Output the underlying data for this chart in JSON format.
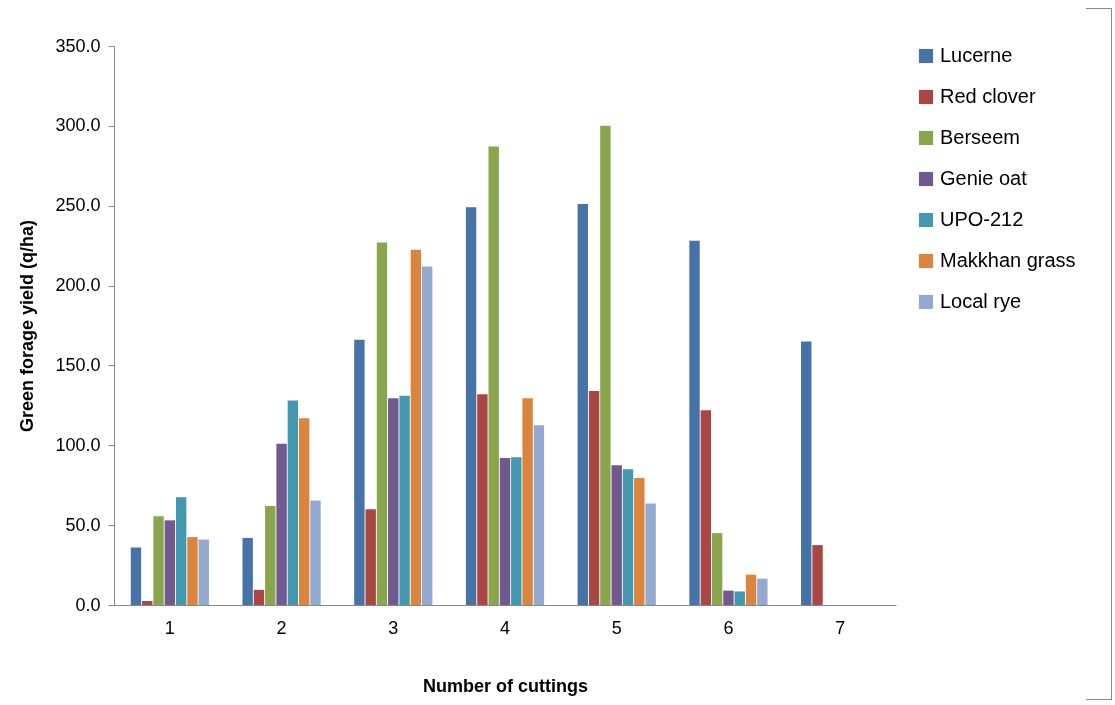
{
  "chart_data": {
    "type": "bar",
    "xlabel": "Number of cuttings",
    "ylabel": "Green forage yield (q/ha)",
    "categories": [
      "1",
      "2",
      "3",
      "4",
      "5",
      "6",
      "7"
    ],
    "series": [
      {
        "name": "Lucerne",
        "color": "#4572a7",
        "values": [
          36,
          42,
          166,
          249,
          251,
          228,
          165
        ]
      },
      {
        "name": "Red clover",
        "color": "#aa4643",
        "values": [
          2.5,
          9.5,
          60,
          132,
          134,
          122,
          37.5
        ]
      },
      {
        "name": "Berseem",
        "color": "#89a54e",
        "values": [
          55.5,
          62,
          227,
          287,
          300,
          45,
          null
        ]
      },
      {
        "name": "Genie oat",
        "color": "#71588f",
        "values": [
          53,
          101,
          129.5,
          92,
          87.5,
          9,
          null
        ]
      },
      {
        "name": "UPO-212",
        "color": "#4198af",
        "values": [
          67.5,
          128,
          131,
          92.5,
          85,
          8.5,
          null
        ]
      },
      {
        "name": "Makkhan grass",
        "color": "#db843d",
        "values": [
          42.5,
          117,
          222.5,
          129.5,
          79.5,
          19,
          null
        ]
      },
      {
        "name": "Local rye",
        "color": "#93a9cf",
        "values": [
          41,
          65.5,
          212,
          112.5,
          63.5,
          16.5,
          null
        ]
      }
    ],
    "ylim": [
      0,
      350
    ],
    "yticks": [
      {
        "value": 0,
        "label": "0.0"
      },
      {
        "value": 50,
        "label": "50.0"
      },
      {
        "value": 100,
        "label": "100.0"
      },
      {
        "value": 150,
        "label": "150.0"
      },
      {
        "value": 200,
        "label": "200.0"
      },
      {
        "value": 250,
        "label": "250.0"
      },
      {
        "value": 300,
        "label": "300.0"
      },
      {
        "value": 350,
        "label": "350.0"
      }
    ],
    "grid": false,
    "legend": "right"
  }
}
